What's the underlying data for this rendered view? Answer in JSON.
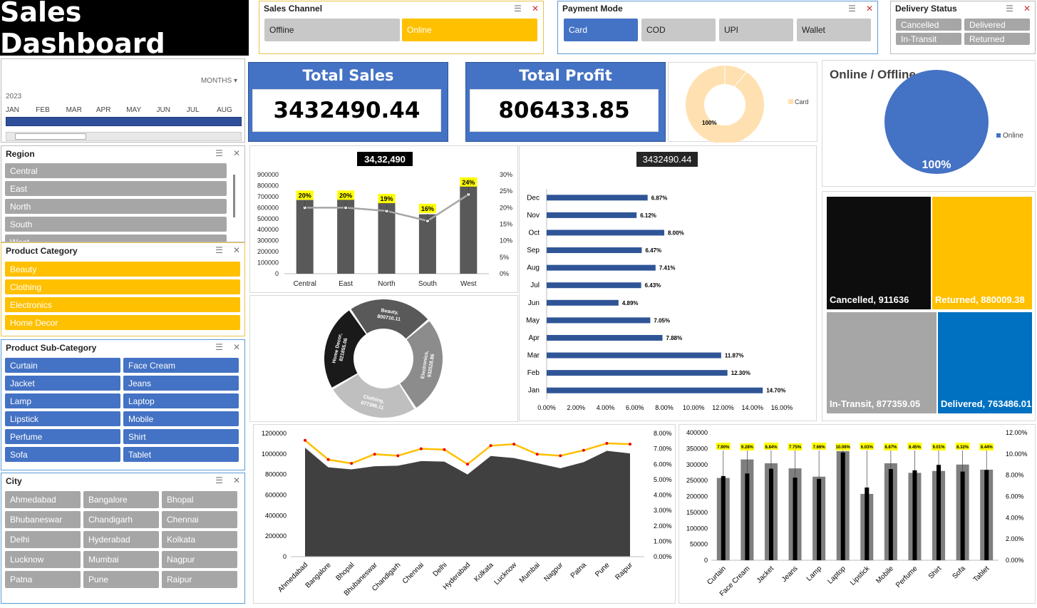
{
  "title": "Sales Dashboard",
  "sales_channel": {
    "title": "Sales Channel",
    "items": [
      "Offline",
      "Online"
    ]
  },
  "payment_mode": {
    "title": "Payment Mode",
    "items": [
      "Card",
      "COD",
      "UPI",
      "Wallet"
    ]
  },
  "delivery_status": {
    "title": "Delivery Status",
    "items": [
      "Cancelled",
      "Delivered",
      "In-Transit",
      "Returned"
    ]
  },
  "timeline": {
    "period_label": "MONTHS",
    "year": "2023",
    "months": [
      "JAN",
      "FEB",
      "MAR",
      "APR",
      "MAY",
      "JUN",
      "JUL",
      "AUG"
    ]
  },
  "region": {
    "title": "Region",
    "items": [
      "Central",
      "East",
      "North",
      "South",
      "West"
    ]
  },
  "product_category": {
    "title": "Product Category",
    "items": [
      "Beauty",
      "Clothing",
      "Electronics",
      "Home Decor"
    ]
  },
  "product_subcategory": {
    "title": "Product Sub-Category",
    "items": [
      "Curtain",
      "Face Cream",
      "Jacket",
      "Jeans",
      "Lamp",
      "Laptop",
      "Lipstick",
      "Mobile",
      "Perfume",
      "Shirt",
      "Sofa",
      "Tablet"
    ]
  },
  "city": {
    "title": "City",
    "items": [
      "Ahmedabad",
      "Bangalore",
      "Bhopal",
      "Bhubaneswar",
      "Chandigarh",
      "Chennai",
      "Delhi",
      "Hyderabad",
      "Kolkata",
      "Lucknow",
      "Mumbai",
      "Nagpur",
      "Patna",
      "Pune",
      "Raipur"
    ]
  },
  "kpis": {
    "total_sales_label": "Total Sales",
    "total_sales": "3432490.44",
    "total_profit_label": "Total Profit",
    "total_profit": "806433.85"
  },
  "colors": {
    "blue": "#4472c4",
    "gold": "#ffc000",
    "gray": "#a6a6a6",
    "dark": "#404040",
    "yellow_label": "#ffff00"
  },
  "chart_data": [
    {
      "type": "pie",
      "name": "payment-donut",
      "labels": [
        "Card"
      ],
      "values": [
        100
      ],
      "data_labels": [
        "100%"
      ],
      "legend": "right"
    },
    {
      "type": "pie",
      "title": "Online / Offline",
      "labels": [
        "Online"
      ],
      "values": [
        100
      ],
      "data_labels": [
        "100%"
      ],
      "legend": "right"
    },
    {
      "type": "bar",
      "title": "34,32,490",
      "categories": [
        "Central",
        "East",
        "North",
        "South",
        "West"
      ],
      "series": [
        {
          "values": [
            670000,
            680000,
            670000,
            540000,
            810000
          ]
        }
      ],
      "line": {
        "values": [
          0.2,
          0.2,
          0.19,
          0.16,
          0.24
        ],
        "labels": [
          "20%",
          "20%",
          "19%",
          "16%",
          "24%"
        ]
      },
      "ylim": [
        0,
        900000
      ],
      "yticks": [
        "900000",
        "800000",
        "700000",
        "600000",
        "500000",
        "400000",
        "300000",
        "200000",
        "100000",
        "0"
      ],
      "y2ticks": [
        "30%",
        "25%",
        "20%",
        "15%",
        "10%",
        "5%",
        "0%"
      ],
      "y2lim": [
        0,
        0.3
      ]
    },
    {
      "type": "bar",
      "orientation": "horizontal",
      "title": "3432490.44",
      "categories": [
        "Jan",
        "Feb",
        "Mar",
        "Apr",
        "May",
        "Jun",
        "Jul",
        "Aug",
        "Sep",
        "Oct",
        "Nov",
        "Dec"
      ],
      "values": [
        14.7,
        12.3,
        11.87,
        7.88,
        7.05,
        4.89,
        6.43,
        7.41,
        6.47,
        8.0,
        6.12,
        6.87
      ],
      "labels": [
        "14.70%",
        "12.30%",
        "11.87%",
        "7.88%",
        "7.05%",
        "4.89%",
        "6.43%",
        "7.41%",
        "6.47%",
        "8.00%",
        "6.12%",
        "6.87%"
      ],
      "xlim": [
        0,
        16
      ],
      "xticks": [
        "0.00%",
        "2.00%",
        "4.00%",
        "6.00%",
        "8.00%",
        "10.00%",
        "12.00%",
        "14.00%",
        "16.00%"
      ]
    },
    {
      "type": "pie",
      "name": "category-donut",
      "labels": [
        "Beauty",
        "Electronics",
        "Clothing",
        "Home Decor"
      ],
      "values": [
        800710.11,
        932528.86,
        877396.11,
        821855.06
      ],
      "data_labels": [
        "Beauty, 800710.11",
        "Electronics, 932528.86",
        "Clothing, 877396.11",
        "Home Decor, 821855.06"
      ]
    },
    {
      "type": "treemap",
      "labels": [
        "Cancelled",
        "Returned",
        "In-Transit",
        "Delivered"
      ],
      "values": [
        911636,
        880009.38,
        877359.05,
        763486.01
      ],
      "data_labels": [
        "Cancelled, 911636",
        "Returned, 880009.38",
        "In-Transit, 877359.05",
        "Delivered, 763486.01"
      ]
    },
    {
      "type": "area",
      "categories": [
        "Ahmedabad",
        "Bangalore",
        "Bhopal",
        "Bhubaneswar",
        "Chandigarh",
        "Chennai",
        "Delhi",
        "Hyderabad",
        "Kolkata",
        "Lucknow",
        "Mumbai",
        "Nagpur",
        "Patna",
        "Pune",
        "Raipur"
      ],
      "values": [
        1060000,
        870000,
        850000,
        880000,
        885000,
        930000,
        925000,
        800000,
        980000,
        960000,
        910000,
        860000,
        920000,
        1030000,
        1005000
      ],
      "line": [
        0.0755,
        0.063,
        0.0605,
        0.0665,
        0.0655,
        0.07,
        0.0695,
        0.06,
        0.072,
        0.073,
        0.0665,
        0.0655,
        0.069,
        0.0735,
        0.073
      ],
      "ylim": [
        0,
        1200000
      ],
      "yticks": [
        "1200000",
        "1000000",
        "800000",
        "600000",
        "400000",
        "200000",
        "0"
      ],
      "y2ticks": [
        "8.00%",
        "7.00%",
        "6.00%",
        "5.00%",
        "4.00%",
        "3.00%",
        "2.00%",
        "1.00%",
        "0.00%"
      ],
      "y2lim": [
        0,
        0.08
      ]
    },
    {
      "type": "bar",
      "categories": [
        "Curtain",
        "Face Cream",
        "Jacket",
        "Jeans",
        "Lamp",
        "Laptop",
        "Lipstick",
        "Mobile",
        "Perfume",
        "Shirt",
        "Sofa",
        "Tablet"
      ],
      "series": [
        {
          "values": [
            258000,
            316000,
            304000,
            288000,
            262000,
            342000,
            208000,
            304000,
            274000,
            280000,
            300000,
            284000
          ]
        },
        {
          "values": [
            264000,
            272000,
            287000,
            259000,
            255000,
            338000,
            228000,
            286000,
            282000,
            299000,
            278000,
            283000
          ]
        }
      ],
      "line": {
        "labels": [
          "7.90%",
          "9.28%",
          "8.84%",
          "7.75%",
          "7.66%",
          "10.06%",
          "6.03%",
          "8.87%",
          "8.45%",
          "9.01%",
          "8.32%",
          "8.44%"
        ]
      },
      "ylim": [
        0,
        400000
      ],
      "yticks": [
        "400000",
        "350000",
        "300000",
        "250000",
        "200000",
        "150000",
        "100000",
        "50000",
        "0"
      ],
      "y2ticks": [
        "12.00%",
        "10.00%",
        "8.00%",
        "6.00%",
        "4.00%",
        "2.00%",
        "0.00%"
      ]
    }
  ]
}
